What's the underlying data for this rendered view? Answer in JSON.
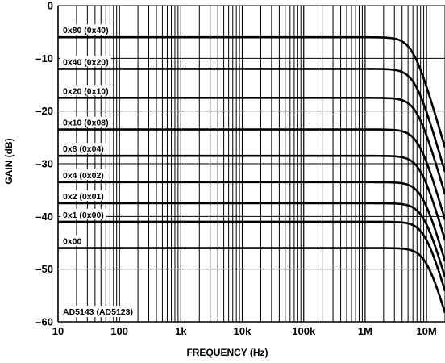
{
  "chart_data": {
    "type": "line",
    "xlabel": "FREQUENCY (Hz)",
    "ylabel": "GAIN (dB)",
    "xscale": "log",
    "xlim": [
      10,
      20000000
    ],
    "ylim": [
      -60,
      0
    ],
    "grid": true,
    "x_ticks": [
      {
        "value": 10,
        "label": "10"
      },
      {
        "value": 100,
        "label": "100"
      },
      {
        "value": 1000,
        "label": "1k"
      },
      {
        "value": 10000,
        "label": "10k"
      },
      {
        "value": 100000,
        "label": "100k"
      },
      {
        "value": 1000000,
        "label": "1M"
      },
      {
        "value": 10000000,
        "label": "10M"
      }
    ],
    "y_ticks": [
      {
        "value": 0,
        "label": "0"
      },
      {
        "value": -10,
        "label": "–10"
      },
      {
        "value": -20,
        "label": "–20"
      },
      {
        "value": -30,
        "label": "–30"
      },
      {
        "value": -40,
        "label": "–40"
      },
      {
        "value": -50,
        "label": "–50"
      },
      {
        "value": -60,
        "label": "–60"
      }
    ],
    "annotation": "AD5143 (AD5123)",
    "series": [
      {
        "name": "0x80 (0x40)",
        "gain_db": -6.0,
        "cutoff_hz": 6000000
      },
      {
        "name": "0x40 (0x20)",
        "gain_db": -12.0,
        "cutoff_hz": 6500000
      },
      {
        "name": "0x20 (0x10)",
        "gain_db": -17.5,
        "cutoff_hz": 7000000
      },
      {
        "name": "0x10 (0x08)",
        "gain_db": -23.5,
        "cutoff_hz": 7500000
      },
      {
        "name": "0x8 (0x04)",
        "gain_db": -28.5,
        "cutoff_hz": 8000000
      },
      {
        "name": "0x4 (0x02)",
        "gain_db": -33.5,
        "cutoff_hz": 8500000
      },
      {
        "name": "0x2 (0x01)",
        "gain_db": -37.5,
        "cutoff_hz": 9000000
      },
      {
        "name": "0x1 (0x00)",
        "gain_db": -41.0,
        "cutoff_hz": 9500000
      },
      {
        "name": "0x00",
        "gain_db": -46.0,
        "cutoff_hz": 10000000
      }
    ]
  }
}
